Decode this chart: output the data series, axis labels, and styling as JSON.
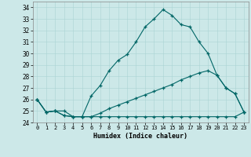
{
  "xlabel": "Humidex (Indice chaleur)",
  "bg_color": "#cce8e8",
  "line_color": "#006666",
  "xlim": [
    -0.5,
    23.5
  ],
  "ylim": [
    24,
    34.5
  ],
  "yticks": [
    24,
    25,
    26,
    27,
    28,
    29,
    30,
    31,
    32,
    33,
    34
  ],
  "xticks": [
    0,
    1,
    2,
    3,
    4,
    5,
    6,
    7,
    8,
    9,
    10,
    11,
    12,
    13,
    14,
    15,
    16,
    17,
    18,
    19,
    20,
    21,
    22,
    23
  ],
  "line1_x": [
    0,
    1,
    2,
    3,
    4,
    5,
    6,
    7,
    8,
    9,
    10,
    11,
    12,
    13,
    14,
    15,
    16,
    17,
    18,
    19,
    20,
    21,
    22,
    23
  ],
  "line1_y": [
    26.0,
    24.9,
    25.0,
    24.6,
    24.5,
    24.5,
    26.3,
    27.2,
    28.5,
    29.4,
    29.9,
    31.0,
    32.3,
    33.0,
    33.8,
    33.3,
    32.5,
    32.3,
    31.0,
    30.0,
    28.1,
    27.0,
    26.5,
    24.9
  ],
  "line2_x": [
    0,
    1,
    2,
    3,
    4,
    5,
    6,
    7,
    8,
    9,
    10,
    11,
    12,
    13,
    14,
    15,
    16,
    17,
    18,
    19,
    20,
    21,
    22,
    23
  ],
  "line2_y": [
    26.0,
    24.9,
    25.0,
    25.0,
    24.5,
    24.5,
    24.5,
    24.8,
    25.2,
    25.5,
    25.8,
    26.1,
    26.4,
    26.7,
    27.0,
    27.3,
    27.7,
    28.0,
    28.3,
    28.5,
    28.1,
    27.0,
    26.5,
    24.9
  ],
  "line3_x": [
    0,
    1,
    2,
    3,
    4,
    5,
    6,
    7,
    8,
    9,
    10,
    11,
    12,
    13,
    14,
    15,
    16,
    17,
    18,
    19,
    20,
    21,
    22,
    23
  ],
  "line3_y": [
    26.0,
    24.9,
    25.0,
    24.6,
    24.5,
    24.5,
    24.5,
    24.5,
    24.5,
    24.5,
    24.5,
    24.5,
    24.5,
    24.5,
    24.5,
    24.5,
    24.5,
    24.5,
    24.5,
    24.5,
    24.5,
    24.5,
    24.5,
    24.9
  ]
}
